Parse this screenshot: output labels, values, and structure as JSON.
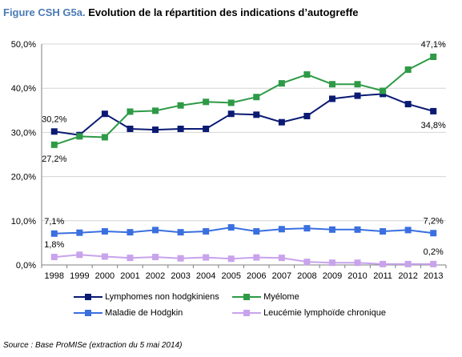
{
  "title_prefix": "Figure CSH G5a.",
  "title_text": "Evolution de la répartition des indications d’autogreffe",
  "source": "Source : Base ProMISe (extraction du 5 mai 2014)",
  "chart_data": {
    "type": "line",
    "x": [
      "1998",
      "1999",
      "2000",
      "2001",
      "2002",
      "2003",
      "2004",
      "2005",
      "2006",
      "2007",
      "2008",
      "2009",
      "2010",
      "2011",
      "2012",
      "2013"
    ],
    "ylim": [
      0,
      50
    ],
    "ytick_labels": [
      "0,0%",
      "10,0%",
      "20,0%",
      "30,0%",
      "40,0%",
      "50,0%"
    ],
    "grid": "horizontal",
    "legend_position": "bottom",
    "series": [
      {
        "name": "Lymphomes non hodgkiniens",
        "color": "#0b1a73",
        "marker": "square",
        "values": [
          30.2,
          29.4,
          34.2,
          30.8,
          30.6,
          30.8,
          30.8,
          34.2,
          34.0,
          32.3,
          33.7,
          37.6,
          38.3,
          38.7,
          36.4,
          34.8
        ]
      },
      {
        "name": "Myélome",
        "color": "#2e9a46",
        "marker": "square",
        "values": [
          27.2,
          29.1,
          28.9,
          34.7,
          34.9,
          36.1,
          36.9,
          36.7,
          38.0,
          41.1,
          43.1,
          40.9,
          40.9,
          39.4,
          44.2,
          47.1
        ]
      },
      {
        "name": "Maladie de Hodgkin",
        "color": "#3a6fe0",
        "marker": "square",
        "values": [
          7.1,
          7.3,
          7.6,
          7.4,
          7.9,
          7.4,
          7.6,
          8.5,
          7.6,
          8.1,
          8.3,
          8.0,
          8.0,
          7.6,
          7.9,
          7.2
        ]
      },
      {
        "name": "Leucémie lymphoïde chronique",
        "color": "#c8a3ec",
        "marker": "square",
        "values": [
          1.8,
          2.3,
          1.9,
          1.6,
          1.8,
          1.5,
          1.7,
          1.4,
          1.7,
          1.6,
          0.7,
          0.5,
          0.5,
          0.2,
          0.2,
          0.2
        ]
      }
    ],
    "annotations": [
      {
        "series": 0,
        "index": 0,
        "text": "30,2%",
        "pos": "above"
      },
      {
        "series": 0,
        "index": 15,
        "text": "34,8%",
        "pos": "below"
      },
      {
        "series": 1,
        "index": 0,
        "text": "27,2%",
        "pos": "below"
      },
      {
        "series": 1,
        "index": 15,
        "text": "47,1%",
        "pos": "above"
      },
      {
        "series": 2,
        "index": 0,
        "text": "7,1%",
        "pos": "above"
      },
      {
        "series": 2,
        "index": 15,
        "text": "7,2%",
        "pos": "above"
      },
      {
        "series": 3,
        "index": 0,
        "text": "1,8%",
        "pos": "above"
      },
      {
        "series": 3,
        "index": 15,
        "text": "0,2%",
        "pos": "above"
      }
    ]
  }
}
